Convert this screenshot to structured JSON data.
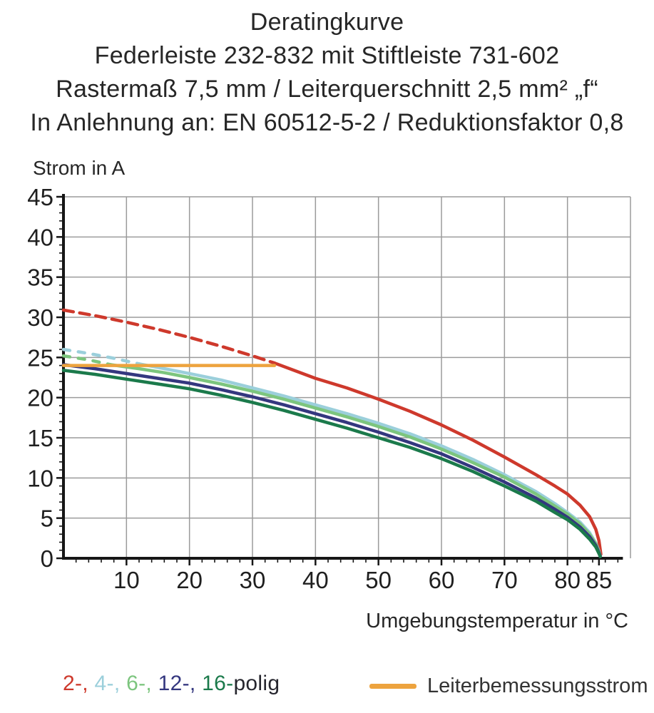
{
  "title": {
    "line1": "Deratingkurve",
    "line2": "Federleiste 232-832 mit Stiftleiste 731-602",
    "line3": "Rastermaß 7,5 mm / Leiterquerschnitt 2,5 mm² „f“",
    "line4": "In Anlehnung an: EN 60512-5-2 / Reduktionsfaktor 0,8"
  },
  "chart_data": {
    "type": "line",
    "ylabel": "Strom in A",
    "xlabel": "Umgebungstemperatur in °C",
    "xlim": [
      0,
      90
    ],
    "ylim": [
      0,
      45
    ],
    "x_major_ticks": [
      10,
      20,
      30,
      40,
      50,
      60,
      70,
      80,
      85
    ],
    "y_major_ticks": [
      0,
      5,
      10,
      15,
      20,
      25,
      30,
      35,
      40,
      45
    ],
    "x_gridlines": [
      10,
      20,
      30,
      40,
      50,
      60,
      70,
      80,
      90
    ],
    "y_gridlines": [
      5,
      10,
      15,
      20,
      25,
      30,
      35,
      40,
      45
    ],
    "x_minor_step": 2,
    "y_minor_step": 1,
    "x_minor_max": 88,
    "grid": true,
    "grid_color": "#9b9b9b",
    "axis_color": "#161616",
    "legend_position": "bottom",
    "series": [
      {
        "name": "2-polig",
        "color": "#ce392c",
        "dash_until_x": 33.5,
        "dash_pattern": "14 9",
        "points": [
          [
            0,
            30.9
          ],
          [
            5,
            30.2
          ],
          [
            10,
            29.4
          ],
          [
            15,
            28.5
          ],
          [
            20,
            27.5
          ],
          [
            25,
            26.4
          ],
          [
            30,
            25.2
          ],
          [
            33.5,
            24.3
          ],
          [
            40,
            22.4
          ],
          [
            45,
            21.2
          ],
          [
            50,
            19.8
          ],
          [
            55,
            18.3
          ],
          [
            60,
            16.6
          ],
          [
            65,
            14.7
          ],
          [
            70,
            12.6
          ],
          [
            75,
            10.4
          ],
          [
            78,
            9.0
          ],
          [
            80,
            8.0
          ],
          [
            82,
            6.6
          ],
          [
            83.5,
            5.2
          ],
          [
            84.5,
            3.6
          ],
          [
            85,
            2.2
          ],
          [
            85.3,
            0.5
          ]
        ]
      },
      {
        "name": "4-polig",
        "color": "#9bcfdb",
        "dash_until_x": 12,
        "dash_pattern": "9 12",
        "points": [
          [
            0,
            26.0
          ],
          [
            4,
            25.5
          ],
          [
            8,
            24.9
          ],
          [
            12,
            24.2
          ],
          [
            16,
            23.6
          ],
          [
            20,
            23.0
          ],
          [
            25,
            22.2
          ],
          [
            30,
            21.2
          ],
          [
            35,
            20.2
          ],
          [
            40,
            19.1
          ],
          [
            45,
            18.0
          ],
          [
            50,
            16.8
          ],
          [
            55,
            15.5
          ],
          [
            60,
            14.0
          ],
          [
            65,
            12.3
          ],
          [
            70,
            10.4
          ],
          [
            75,
            8.3
          ],
          [
            78,
            6.8
          ],
          [
            80,
            5.7
          ],
          [
            82,
            4.5
          ],
          [
            83.5,
            3.2
          ],
          [
            84.5,
            1.9
          ],
          [
            85,
            0.9
          ],
          [
            85.2,
            0.3
          ]
        ]
      },
      {
        "name": "6-polig",
        "color": "#7cc57e",
        "dash_until_x": 7.5,
        "dash_pattern": "9 12",
        "points": [
          [
            0,
            25.2
          ],
          [
            4,
            24.7
          ],
          [
            7.5,
            24.1
          ],
          [
            12,
            23.6
          ],
          [
            16,
            23.1
          ],
          [
            20,
            22.5
          ],
          [
            25,
            21.7
          ],
          [
            30,
            20.8
          ],
          [
            35,
            19.8
          ],
          [
            40,
            18.7
          ],
          [
            45,
            17.6
          ],
          [
            50,
            16.4
          ],
          [
            55,
            15.1
          ],
          [
            60,
            13.6
          ],
          [
            65,
            11.9
          ],
          [
            70,
            10.1
          ],
          [
            75,
            8.0
          ],
          [
            78,
            6.5
          ],
          [
            80,
            5.5
          ],
          [
            82,
            4.3
          ],
          [
            83.5,
            3.0
          ],
          [
            84.5,
            1.8
          ],
          [
            85,
            0.8
          ],
          [
            85.2,
            0.3
          ]
        ]
      },
      {
        "name": "12-polig",
        "color": "#34377f",
        "dash_until_x": 0,
        "dash_pattern": "",
        "points": [
          [
            0,
            24.1
          ],
          [
            5,
            23.6
          ],
          [
            10,
            23.0
          ],
          [
            15,
            22.4
          ],
          [
            20,
            21.8
          ],
          [
            25,
            21.0
          ],
          [
            30,
            20.1
          ],
          [
            35,
            19.1
          ],
          [
            40,
            18.0
          ],
          [
            45,
            16.9
          ],
          [
            50,
            15.7
          ],
          [
            55,
            14.4
          ],
          [
            60,
            13.0
          ],
          [
            65,
            11.3
          ],
          [
            70,
            9.5
          ],
          [
            75,
            7.5
          ],
          [
            78,
            6.1
          ],
          [
            80,
            5.1
          ],
          [
            82,
            3.9
          ],
          [
            83.5,
            2.7
          ],
          [
            84.5,
            1.6
          ],
          [
            85,
            0.7
          ],
          [
            85.2,
            0.3
          ]
        ]
      },
      {
        "name": "16-polig",
        "color": "#1b7a4b",
        "dash_until_x": 0,
        "dash_pattern": "",
        "points": [
          [
            0,
            23.4
          ],
          [
            5,
            22.9
          ],
          [
            10,
            22.3
          ],
          [
            15,
            21.7
          ],
          [
            20,
            21.1
          ],
          [
            25,
            20.3
          ],
          [
            30,
            19.4
          ],
          [
            35,
            18.4
          ],
          [
            40,
            17.3
          ],
          [
            45,
            16.2
          ],
          [
            50,
            15.0
          ],
          [
            55,
            13.8
          ],
          [
            60,
            12.4
          ],
          [
            65,
            10.8
          ],
          [
            70,
            9.0
          ],
          [
            75,
            7.1
          ],
          [
            78,
            5.7
          ],
          [
            80,
            4.8
          ],
          [
            82,
            3.6
          ],
          [
            83.5,
            2.4
          ],
          [
            84.5,
            1.4
          ],
          [
            85,
            0.6
          ],
          [
            85.2,
            0.2
          ]
        ]
      },
      {
        "name": "Leiterbemessungsstrom",
        "color": "#eda33e",
        "dash_until_x": 0,
        "dash_pattern": "",
        "points": [
          [
            0,
            24
          ],
          [
            33.5,
            24
          ]
        ]
      }
    ]
  },
  "legend": {
    "polig_items": [
      {
        "label": "2-,",
        "color": "#ce392c"
      },
      {
        "label": "4-,",
        "color": "#9bcfdb"
      },
      {
        "label": "6-,",
        "color": "#7cc57e"
      },
      {
        "label": "12-,",
        "color": "#34377f"
      },
      {
        "label": "16-",
        "color": "#1b7a4b"
      }
    ],
    "polig_suffix": "polig",
    "rated_label": "Leiterbemessungsstrom",
    "rated_color": "#eda33e"
  }
}
